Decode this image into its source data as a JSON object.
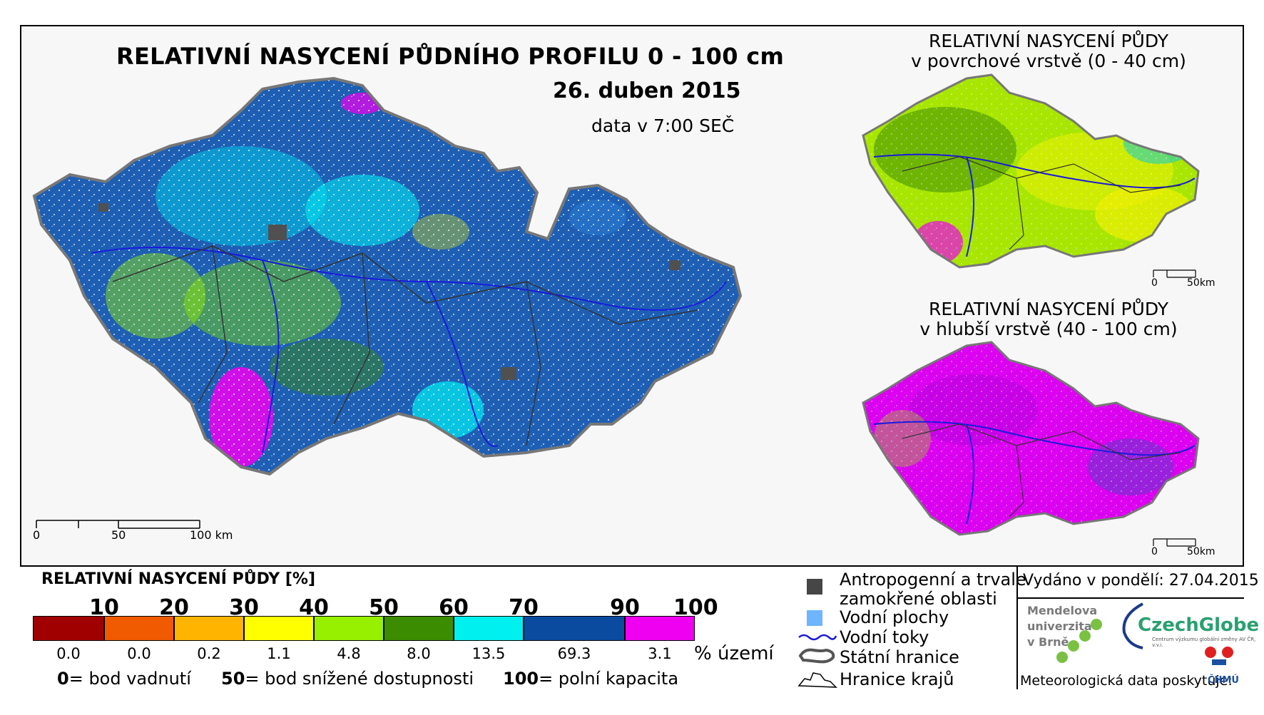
{
  "main_map": {
    "title": "RELATIVNÍ NASYCENÍ PŮDNÍHO PROFILU 0 - 100 cm",
    "date": "26. duben 2015",
    "time": "data v 7:00 SEČ",
    "scale_labels": [
      "0",
      "50",
      "100 km"
    ]
  },
  "inset_top": {
    "title_line1": "RELATIVNÍ NASYCENÍ PŮDY",
    "title_line2": "v povrchové vrstvě (0 - 40 cm)",
    "scale_labels": [
      "0",
      "50km"
    ]
  },
  "inset_bottom": {
    "title_line1": "RELATIVNÍ NASYCENÍ PŮDY",
    "title_line2": "v hlubší vrstvě (40 - 100 cm)",
    "scale_labels": [
      "0",
      "50km"
    ]
  },
  "legend": {
    "title": "RELATIVNÍ NASYCENÍ PŮDY [%]",
    "class_bounds": [
      "10",
      "20",
      "30",
      "40",
      "50",
      "60",
      "70",
      "90",
      "100"
    ],
    "classes": [
      {
        "color": "#a00000",
        "percent": "0.0"
      },
      {
        "color": "#f05a00",
        "percent": "0.0"
      },
      {
        "color": "#ffb400",
        "percent": "0.2"
      },
      {
        "color": "#ffff00",
        "percent": "1.1"
      },
      {
        "color": "#96f000",
        "percent": "4.8"
      },
      {
        "color": "#3c8c00",
        "percent": "8.0"
      },
      {
        "color": "#00f0f0",
        "percent": "13.5"
      },
      {
        "color": "#0a4ba0",
        "percent": "69.3"
      },
      {
        "color": "#f000f0",
        "percent": "3.1"
      }
    ],
    "percent_unit": "% území",
    "definitions": [
      {
        "value": "0",
        "label": "= bod vadnutí"
      },
      {
        "value": "50",
        "label": "= bod snížené dostupnosti"
      },
      {
        "value": "100",
        "label": "= polní kapacita"
      }
    ]
  },
  "symbols": {
    "anthropogenic_line1": "Antropogenní a trvale",
    "anthropogenic_line2": "zamokřené oblasti",
    "water_bodies": "Vodní plochy",
    "rivers": "Vodní toky",
    "state_border": "Státní hranice",
    "region_border": "Hranice krajů"
  },
  "credits": {
    "issued": "Vydáno v pondělí: 27.04.2015",
    "mendel_line1": "Mendelova",
    "mendel_line2": "univerzita",
    "mendel_line3": "v Brně",
    "czechglobe": "CzechGlobe",
    "czechglobe_sub": "Centrum výzkumu globální změny AV ČR, v.v.i.",
    "meteo": "Meteorologická data poskytuje:",
    "chmu": "ČHMÚ"
  },
  "colors": {
    "blue": "#1e5fb4",
    "cyan": "#00e6f0",
    "green_light": "#96f000",
    "green_dark": "#3c8c00",
    "yellow": "#f0f000",
    "magenta": "#f000f0",
    "grey": "#505050",
    "river": "#1a1adc"
  }
}
